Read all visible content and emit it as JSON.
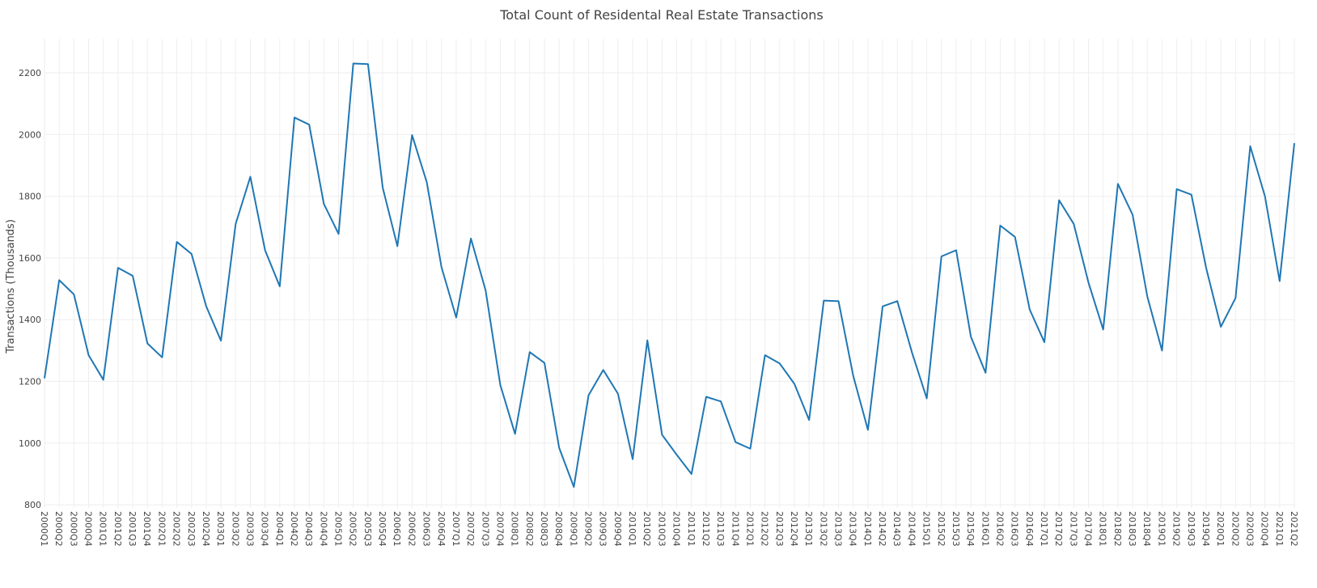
{
  "colors": {
    "series": "#1f77b4",
    "grid": "#eeeeee",
    "text": "#444444"
  },
  "chart_data": {
    "type": "line",
    "title": "Total Count of Residental Real Estate Transactions",
    "xlabel": "",
    "ylabel": "Transactions (Thousands)",
    "ylim": [
      790,
      2310
    ],
    "yticks": [
      800,
      1000,
      1200,
      1400,
      1600,
      1800,
      2000,
      2200
    ],
    "grid": true,
    "legend": "none",
    "categories": [
      "2000Q1",
      "2000Q2",
      "2000Q3",
      "2000Q4",
      "2001Q1",
      "2001Q2",
      "2001Q3",
      "2001Q4",
      "2002Q1",
      "2002Q2",
      "2002Q3",
      "2002Q4",
      "2003Q1",
      "2003Q2",
      "2003Q3",
      "2003Q4",
      "2004Q1",
      "2004Q2",
      "2004Q3",
      "2004Q4",
      "2005Q1",
      "2005Q2",
      "2005Q3",
      "2005Q4",
      "2006Q1",
      "2006Q2",
      "2006Q3",
      "2006Q4",
      "2007Q1",
      "2007Q2",
      "2007Q3",
      "2007Q4",
      "2008Q1",
      "2008Q2",
      "2008Q3",
      "2008Q4",
      "2009Q1",
      "2009Q2",
      "2009Q3",
      "2009Q4",
      "2010Q1",
      "2010Q2",
      "2010Q3",
      "2010Q4",
      "2011Q1",
      "2011Q2",
      "2011Q3",
      "2011Q4",
      "2012Q1",
      "2012Q2",
      "2012Q3",
      "2012Q4",
      "2013Q1",
      "2013Q2",
      "2013Q3",
      "2013Q4",
      "2014Q1",
      "2014Q2",
      "2014Q3",
      "2014Q4",
      "2015Q1",
      "2015Q2",
      "2015Q3",
      "2015Q4",
      "2016Q1",
      "2016Q2",
      "2016Q3",
      "2016Q4",
      "2017Q1",
      "2017Q2",
      "2017Q3",
      "2017Q4",
      "2018Q1",
      "2018Q2",
      "2018Q3",
      "2018Q4",
      "2019Q1",
      "2019Q2",
      "2019Q3",
      "2019Q4",
      "2020Q1",
      "2020Q2",
      "2020Q3",
      "2020Q4",
      "2021Q1",
      "2021Q2"
    ],
    "series": [
      {
        "values": [
          1210,
          1528,
          1482,
          1285,
          1205,
          1568,
          1542,
          1323,
          1278,
          1652,
          1613,
          1443,
          1332,
          1710,
          1863,
          1625,
          1508,
          2055,
          2032,
          1775,
          1678,
          2230,
          2228,
          1828,
          1638,
          1998,
          1845,
          1570,
          1407,
          1663,
          1495,
          1188,
          1030,
          1295,
          1260,
          985,
          858,
          1155,
          1237,
          1160,
          948,
          1333,
          1027,
          962,
          900,
          1150,
          1135,
          1003,
          982,
          1285,
          1258,
          1192,
          1075,
          1462,
          1460,
          1218,
          1043,
          1443,
          1460,
          1293,
          1145,
          1605,
          1625,
          1345,
          1228,
          1705,
          1668,
          1433,
          1327,
          1787,
          1710,
          1520,
          1368,
          1840,
          1740,
          1475,
          1300,
          1823,
          1805,
          1568,
          1377,
          1470,
          1962,
          1800,
          1525,
          1972
        ]
      }
    ]
  }
}
